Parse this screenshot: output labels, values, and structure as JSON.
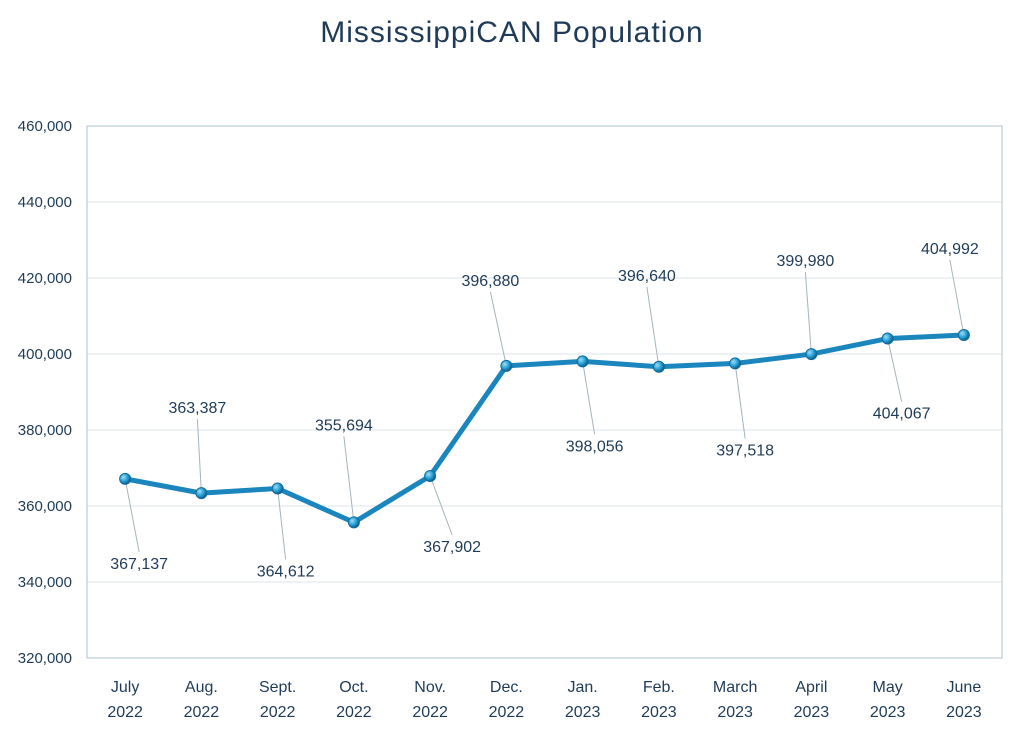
{
  "chart_data": {
    "type": "line",
    "title": "MississippiCAN Population",
    "xlabel": "",
    "ylabel": "",
    "categories": [
      [
        "July",
        "2022"
      ],
      [
        "Aug.",
        "2022"
      ],
      [
        "Sept.",
        "2022"
      ],
      [
        "Oct.",
        "2022"
      ],
      [
        "Nov.",
        "2022"
      ],
      [
        "Dec.",
        "2022"
      ],
      [
        "Jan.",
        "2023"
      ],
      [
        "Feb.",
        "2023"
      ],
      [
        "March",
        "2023"
      ],
      [
        "April",
        "2023"
      ],
      [
        "May",
        "2023"
      ],
      [
        "June",
        "2023"
      ]
    ],
    "values": [
      367137,
      363387,
      364612,
      355694,
      367902,
      396880,
      398056,
      396640,
      397518,
      399980,
      404067,
      404992
    ],
    "data_labels": [
      "367,137",
      "363,387",
      "364,612",
      "355,694",
      "367,902",
      "396,880",
      "398,056",
      "396,640",
      "397,518",
      "399,980",
      "404,067",
      "404,992"
    ],
    "ylim": [
      320000,
      460000
    ],
    "yticks": [
      "320,000",
      "340,000",
      "360,000",
      "380,000",
      "400,000",
      "420,000",
      "440,000",
      "460,000"
    ],
    "grid": true,
    "legend": "none",
    "colors": {
      "line": "#1b86bd",
      "marker": "#2aa3d8",
      "text": "#1f3b57",
      "grid": "#dde6ea",
      "axis": "#b9cdd6",
      "leader": "#a6b4bb"
    }
  }
}
